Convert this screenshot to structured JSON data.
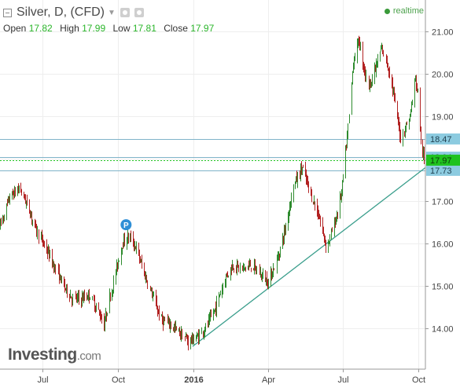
{
  "header": {
    "symbol_title": "Silver, D, (CFD)",
    "realtime_label": "realtime"
  },
  "ohlc": {
    "open_label": "Open",
    "open_value": "17.82",
    "high_label": "High",
    "high_value": "17.99",
    "low_label": "Low",
    "low_value": "17.81",
    "close_label": "Close",
    "close_value": "17.97"
  },
  "logo": {
    "main": "Investing",
    "suffix": ".com"
  },
  "colors": {
    "up": "#2e8b2e",
    "down": "#b22222",
    "hline": "#7fb3c9",
    "trend": "#3a9e8c",
    "current": "#1fc21f",
    "tag": "#8ccbe0",
    "pivot": "#2f8fd6"
  },
  "chart_data": {
    "type": "candlestick",
    "price_axis": {
      "ticks": [
        14.0,
        15.0,
        16.0,
        17.0,
        18.0,
        19.0,
        20.0,
        21.0
      ],
      "range": [
        13.45,
        21.45
      ]
    },
    "time_axis": [
      "Jul",
      "Oct",
      "2016",
      "Apr",
      "Jul",
      "Oct"
    ],
    "horizontal_levels": [
      {
        "value": "18.47",
        "price": 18.47
      },
      {
        "value": "18.04",
        "price": 18.04
      },
      {
        "value": "17.73",
        "price": 17.73
      }
    ],
    "current_price": {
      "value": "17.97",
      "price": 17.97
    },
    "pivot_marker": {
      "label": "P",
      "price": 16.17
    },
    "trendline": [
      {
        "date": "2015-12-31",
        "price": 13.58
      },
      {
        "date": "2016-10-07",
        "price": 17.76
      }
    ],
    "anchors": [
      [
        "2015-05-10",
        16.4
      ],
      [
        "2015-05-22",
        17.1
      ],
      [
        "2015-06-03",
        17.3
      ],
      [
        "2015-06-13",
        16.9
      ],
      [
        "2015-06-24",
        16.3
      ],
      [
        "2015-07-05",
        15.9
      ],
      [
        "2015-07-17",
        15.4
      ],
      [
        "2015-07-27",
        15.0
      ],
      [
        "2015-08-07",
        14.7
      ],
      [
        "2015-08-17",
        14.7
      ],
      [
        "2015-08-27",
        14.8
      ],
      [
        "2015-09-07",
        14.4
      ],
      [
        "2015-09-14",
        14.1
      ],
      [
        "2015-09-24",
        15.0
      ],
      [
        "2015-10-01",
        15.6
      ],
      [
        "2015-10-06",
        16.0
      ],
      [
        "2015-10-14",
        16.17
      ],
      [
        "2015-10-23",
        15.9
      ],
      [
        "2015-11-02",
        15.3
      ],
      [
        "2015-11-13",
        14.7
      ],
      [
        "2015-11-23",
        14.2
      ],
      [
        "2015-12-03",
        14.1
      ],
      [
        "2015-12-15",
        13.9
      ],
      [
        "2015-12-25",
        13.7
      ],
      [
        "2016-01-06",
        13.8
      ],
      [
        "2016-01-18",
        14.1
      ],
      [
        "2016-01-28",
        14.5
      ],
      [
        "2016-02-08",
        15.2
      ],
      [
        "2016-02-18",
        15.5
      ],
      [
        "2016-02-29",
        15.4
      ],
      [
        "2016-03-11",
        15.5
      ],
      [
        "2016-03-21",
        15.3
      ],
      [
        "2016-04-01",
        15.1
      ],
      [
        "2016-04-11",
        15.6
      ],
      [
        "2016-04-22",
        16.4
      ],
      [
        "2016-05-02",
        17.4
      ],
      [
        "2016-05-12",
        17.8
      ],
      [
        "2016-05-22",
        17.2
      ],
      [
        "2016-06-02",
        16.6
      ],
      [
        "2016-06-11",
        15.9
      ],
      [
        "2016-06-22",
        16.6
      ],
      [
        "2016-06-29",
        17.2
      ],
      [
        "2016-07-06",
        18.5
      ],
      [
        "2016-07-13",
        20.3
      ],
      [
        "2016-07-20",
        20.8
      ],
      [
        "2016-07-31",
        19.7
      ],
      [
        "2016-08-07",
        20.0
      ],
      [
        "2016-08-17",
        20.6
      ],
      [
        "2016-08-27",
        20.0
      ],
      [
        "2016-09-02",
        19.3
      ],
      [
        "2016-09-09",
        18.5
      ],
      [
        "2016-09-20",
        19.0
      ],
      [
        "2016-09-27",
        19.9
      ],
      [
        "2016-10-02",
        19.3
      ],
      [
        "2016-10-04",
        18.3
      ],
      [
        "2016-10-07",
        17.97
      ]
    ]
  }
}
